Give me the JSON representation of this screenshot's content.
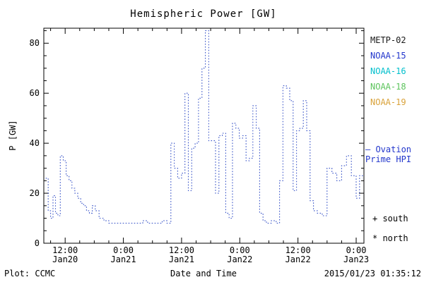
{
  "title": "Hemispheric Power [GW]",
  "ylabel": "P [GW]",
  "xlabel": "Date and Time",
  "footer": {
    "left": "Plot: CCMC",
    "right": "2015/01/23 01:35:12"
  },
  "legend": {
    "satellites": [
      {
        "label": "METP-02",
        "color": "#1a1a1a"
      },
      {
        "label": "NOAA-15",
        "color": "#2236cc"
      },
      {
        "label": "NOAA-16",
        "color": "#00bfcc"
      },
      {
        "label": "NOAA-18",
        "color": "#5cc45c"
      },
      {
        "label": "NOAA-19",
        "color": "#d9a23a"
      }
    ],
    "ovation": "— Ovation\nPrime HPI",
    "ovation_color": "#2236cc",
    "south": "+ south",
    "north": "* north"
  },
  "chart_data": {
    "type": "line",
    "style": "stepped-dotted",
    "line_color": "#3a55c8",
    "title": "Hemispheric Power [GW]",
    "xlabel": "Date and Time",
    "ylabel": "P [GW]",
    "x_unit": "hours since 2015-01-20 00:00 UT",
    "xlim": [
      7.6,
      73.6
    ],
    "ylim": [
      0,
      86
    ],
    "yticks": [
      0,
      20,
      40,
      60,
      80
    ],
    "xticks": [
      {
        "h": 12,
        "time": "12:00",
        "date": "Jan20"
      },
      {
        "h": 24,
        "time": "0:00",
        "date": "Jan21"
      },
      {
        "h": 36,
        "time": "12:00",
        "date": "Jan21"
      },
      {
        "h": 48,
        "time": "0:00",
        "date": "Jan22"
      },
      {
        "h": 60,
        "time": "12:00",
        "date": "Jan22"
      },
      {
        "h": 72,
        "time": "0:00",
        "date": "Jan23"
      }
    ],
    "points": [
      [
        8.0,
        26
      ],
      [
        8.5,
        13
      ],
      [
        9.0,
        10
      ],
      [
        9.5,
        19
      ],
      [
        10.0,
        12
      ],
      [
        10.5,
        11
      ],
      [
        11.0,
        35
      ],
      [
        11.6,
        33
      ],
      [
        12.2,
        27
      ],
      [
        12.8,
        25
      ],
      [
        13.4,
        22
      ],
      [
        14.0,
        20
      ],
      [
        14.6,
        18
      ],
      [
        15.2,
        16
      ],
      [
        15.8,
        15
      ],
      [
        16.4,
        13
      ],
      [
        17.0,
        12
      ],
      [
        17.6,
        15
      ],
      [
        18.2,
        13
      ],
      [
        19.0,
        10
      ],
      [
        20.0,
        9
      ],
      [
        21.0,
        8
      ],
      [
        22.0,
        8
      ],
      [
        23.0,
        8
      ],
      [
        24.0,
        8
      ],
      [
        25.0,
        8
      ],
      [
        26.0,
        8
      ],
      [
        27.0,
        8
      ],
      [
        28.0,
        9
      ],
      [
        29.0,
        8
      ],
      [
        30.0,
        8
      ],
      [
        31.0,
        8
      ],
      [
        32.0,
        9
      ],
      [
        33.0,
        8
      ],
      [
        33.8,
        40
      ],
      [
        34.5,
        30
      ],
      [
        35.2,
        26
      ],
      [
        36.0,
        28
      ],
      [
        36.7,
        60
      ],
      [
        37.4,
        21
      ],
      [
        38.1,
        38
      ],
      [
        38.8,
        40
      ],
      [
        39.5,
        58
      ],
      [
        40.2,
        70
      ],
      [
        40.9,
        85
      ],
      [
        41.6,
        41
      ],
      [
        42.3,
        41
      ],
      [
        43.0,
        20
      ],
      [
        43.7,
        43
      ],
      [
        44.4,
        44
      ],
      [
        45.1,
        12
      ],
      [
        45.8,
        10
      ],
      [
        46.5,
        48
      ],
      [
        47.2,
        46
      ],
      [
        47.9,
        42
      ],
      [
        48.6,
        43
      ],
      [
        49.3,
        33
      ],
      [
        50.0,
        34
      ],
      [
        50.7,
        55
      ],
      [
        51.4,
        46
      ],
      [
        52.1,
        12
      ],
      [
        52.8,
        9
      ],
      [
        53.5,
        8
      ],
      [
        54.5,
        9
      ],
      [
        55.5,
        8
      ],
      [
        56.2,
        25
      ],
      [
        56.9,
        63
      ],
      [
        57.6,
        62
      ],
      [
        58.3,
        57
      ],
      [
        59.0,
        21
      ],
      [
        59.7,
        45
      ],
      [
        60.4,
        46
      ],
      [
        61.1,
        57
      ],
      [
        61.8,
        45
      ],
      [
        62.5,
        17
      ],
      [
        63.2,
        13
      ],
      [
        64.0,
        12
      ],
      [
        65.0,
        11
      ],
      [
        66.0,
        30
      ],
      [
        67.0,
        28
      ],
      [
        68.0,
        25
      ],
      [
        69.0,
        31
      ],
      [
        70.0,
        35
      ],
      [
        71.0,
        27
      ],
      [
        72.0,
        18
      ],
      [
        72.7,
        27
      ],
      [
        73.3,
        26
      ]
    ]
  }
}
